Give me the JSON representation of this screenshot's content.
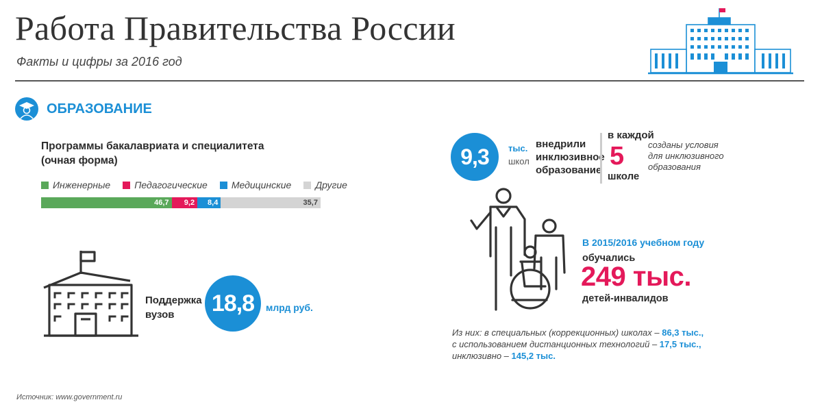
{
  "header": {
    "title": "Работа Правительства России",
    "subtitle": "Факты и цифры за 2016 год"
  },
  "section": {
    "title": "ОБРАЗОВАНИЕ",
    "icon": "graduate-icon"
  },
  "colors": {
    "accent_blue": "#1b8fd6",
    "accent_pink": "#e4195a"
  },
  "programs": {
    "title_line1": "Программы бакалавриата и специалитета",
    "title_line2": "(очная форма)",
    "legend": [
      "Инженерные",
      "Педагогические",
      "Медицинские",
      "Другие"
    ],
    "segments": [
      {
        "name": "Инженерные",
        "value": 46.7,
        "label": "46,7",
        "color": "#5aa85a"
      },
      {
        "name": "Педагогические",
        "value": 9.2,
        "label": "9,2",
        "color": "#e4195a"
      },
      {
        "name": "Медицинские",
        "value": 8.4,
        "label": "8,4",
        "color": "#1b8fd6"
      },
      {
        "name": "Другие",
        "value": 35.7,
        "label": "35,7",
        "color": "#d4d4d4"
      }
    ]
  },
  "support": {
    "label_line1": "Поддержка",
    "label_line2": "вузов",
    "value": "18,8",
    "unit": "млрд руб."
  },
  "inclusive": {
    "schools_value": "9,3",
    "schools_unit": "тыс.",
    "schools_word": "школ",
    "text_line1": "внедрили",
    "text_line2": "инклюзивное",
    "text_line3": "образование",
    "each_label": "в каждой",
    "each_number": "5",
    "each_school": "школе",
    "conditions_line1": "созданы условия",
    "conditions_line2": "для инклюзивного",
    "conditions_line3": "образования"
  },
  "students": {
    "year_label": "В 2015/2016 учебном году",
    "studied_label": "обучались",
    "big_number": "249 тыс.",
    "children_label": "детей-инвалидов",
    "breakdown_line1_text": "Из них: в специальных (коррекционных) школах – ",
    "breakdown_line1_value": "86,3 тыс.,",
    "breakdown_line2_text": "с использованием дистанционных технологий – ",
    "breakdown_line2_value": "17,5 тыс.,",
    "breakdown_line3_text": "инклюзивно – ",
    "breakdown_line3_value": "145,2 тыс."
  },
  "source": "Источник: www.government.ru"
}
